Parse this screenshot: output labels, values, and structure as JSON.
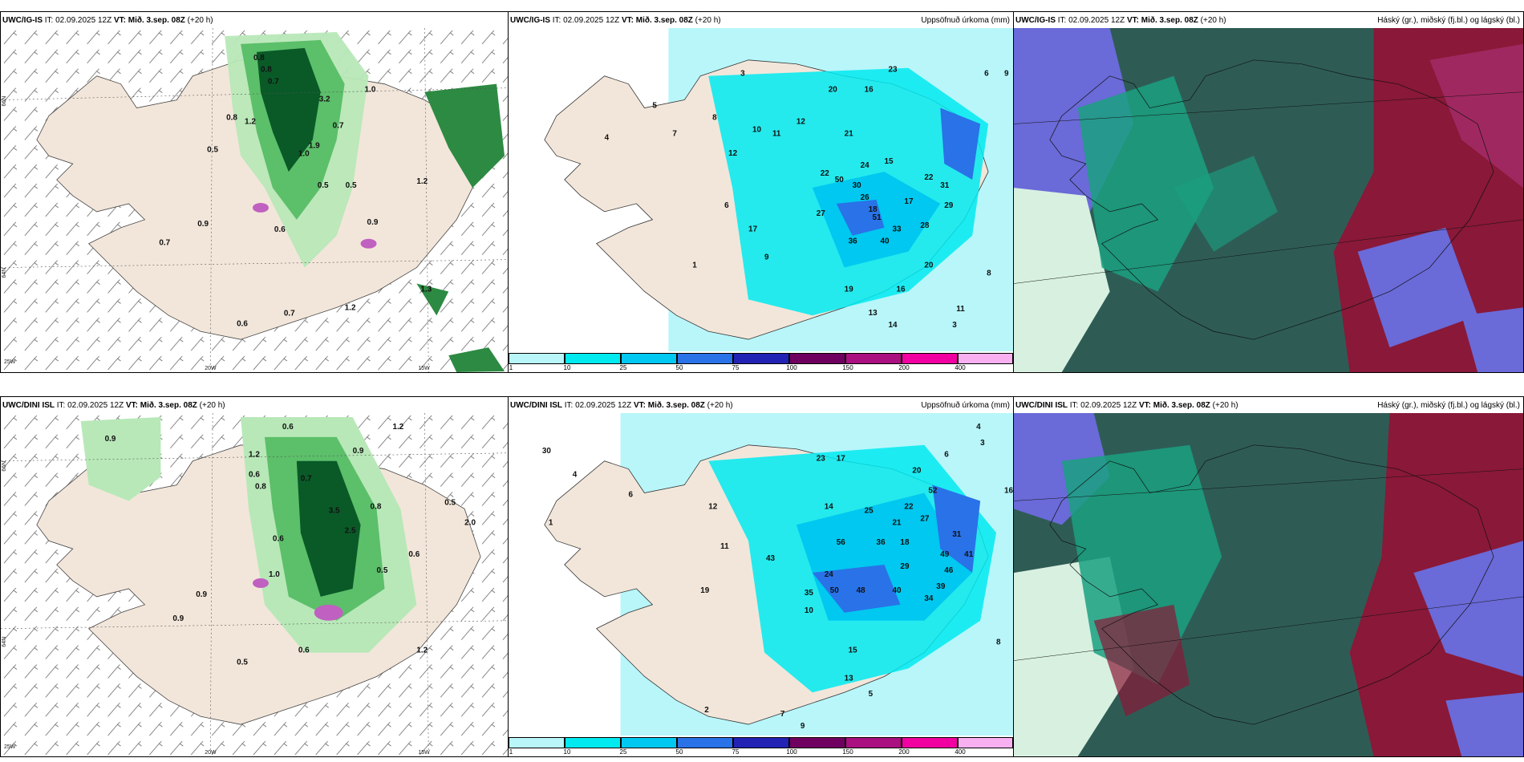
{
  "panels": {
    "p1": {
      "model": "UWC/IG-IS",
      "it": "IT: 02.09.2025 12Z",
      "vt_label": "VT:",
      "vt": "Mið. 3.sep. 08Z",
      "step": "(+20 h)",
      "right": ""
    },
    "p2": {
      "model": "UWC/IG-IS",
      "it": "IT: 02.09.2025 12Z",
      "vt_label": "VT:",
      "vt": "Mið. 3.sep. 08Z",
      "step": "(+20 h)",
      "right": "Uppsöfnuð úrkoma (mm)"
    },
    "p3": {
      "model": "UWC/IG-IS",
      "it": "IT: 02.09.2025 12Z",
      "vt_label": "VT:",
      "vt": "Mið. 3.sep. 08Z",
      "step": "(+20 h)",
      "right": "Háský (gr.), miðský (fj.bl.) og lágský (bl.)"
    },
    "p4": {
      "model": "UWC/DINI ISL",
      "it": "IT: 02.09.2025 12Z",
      "vt_label": "VT:",
      "vt": "Mið. 3.sep. 08Z",
      "step": "(+20 h)",
      "right": ""
    },
    "p5": {
      "model": "UWC/DINI ISL",
      "it": "IT: 02.09.2025 12Z",
      "vt_label": "VT:",
      "vt": "Mið. 3.sep. 08Z",
      "step": "(+20 h)",
      "right": "Uppsöfnuð úrkoma (mm)"
    },
    "p6": {
      "model": "UWC/DINI ISL",
      "it": "IT: 02.09.2025 12Z",
      "vt_label": "VT:",
      "vt": "Mið. 3.sep. 08Z",
      "step": "(+20 h)",
      "right": "Háský (gr.), miðský (fj.bl.) og lágský (bl.)"
    }
  },
  "grid_labels": {
    "lat66": "66N",
    "lat64": "64N",
    "lon25": "25W",
    "lon20": "20W",
    "lon15": "15W"
  },
  "precip_labels_top": [
    "0.8",
    "0.7",
    "1.0",
    "0.5",
    "0.8",
    "1.2",
    "0.7",
    "0.9",
    "1.9",
    "1.0",
    "0.5",
    "0.7",
    "0.6",
    "1.2",
    "0.7",
    "0.9",
    "0.5",
    "0.6",
    "1.3",
    "3.2",
    "0.8",
    "1.2"
  ],
  "precip_labels_bot": [
    "0.6",
    "0.9",
    "1.2",
    "0.6",
    "0.8",
    "0.7",
    "3.5",
    "2.5",
    "0.9",
    "0.6",
    "0.8",
    "1.2",
    "0.5",
    "0.9",
    "0.5",
    "0.6",
    "1.2",
    "1.0",
    "0.5",
    "2.0",
    "0.6",
    "0.9"
  ],
  "accum_labels_top": [
    "6",
    "9",
    "3",
    "12",
    "20",
    "16",
    "15",
    "22",
    "21",
    "24",
    "30",
    "26",
    "18",
    "17",
    "28",
    "29",
    "22",
    "50",
    "16",
    "19",
    "11",
    "13",
    "14",
    "3",
    "8",
    "5",
    "4",
    "8",
    "12",
    "7",
    "9",
    "6",
    "11",
    "10",
    "1",
    "17",
    "23",
    "27",
    "40",
    "51",
    "36",
    "33",
    "20",
    "31"
  ],
  "accum_labels_bot": [
    "3",
    "4",
    "8",
    "6",
    "12",
    "14",
    "16",
    "18",
    "25",
    "22",
    "31",
    "36",
    "29",
    "46",
    "41",
    "43",
    "56",
    "48",
    "50",
    "10",
    "15",
    "13",
    "9",
    "7",
    "5",
    "2",
    "1",
    "4",
    "6",
    "11",
    "20",
    "24",
    "27",
    "34",
    "39",
    "40",
    "19",
    "52",
    "23",
    "30",
    "17",
    "21",
    "49",
    "35"
  ],
  "colorbar": {
    "ticks": [
      "1",
      "10",
      "25",
      "50",
      "75",
      "100",
      "150",
      "200",
      "400"
    ],
    "colors": [
      "#b8f6fa",
      "#00eaf0",
      "#00c8f0",
      "#2a72e8",
      "#2222b4",
      "#700060",
      "#aa1080",
      "#f000a0",
      "#f8b0f0"
    ]
  },
  "colors": {
    "land": "#f2e6da",
    "sea": "#ffffff",
    "wet_light": "#b8e8b8",
    "wet_mid": "#5cbf6a",
    "wet_dark": "#0a5a28",
    "purple": "#c060c0",
    "cloud_dark": "#2e5c55",
    "cloud_teal": "#1aa080",
    "cloud_blue": "#6a6ad8",
    "cloud_red": "#8a1838"
  }
}
